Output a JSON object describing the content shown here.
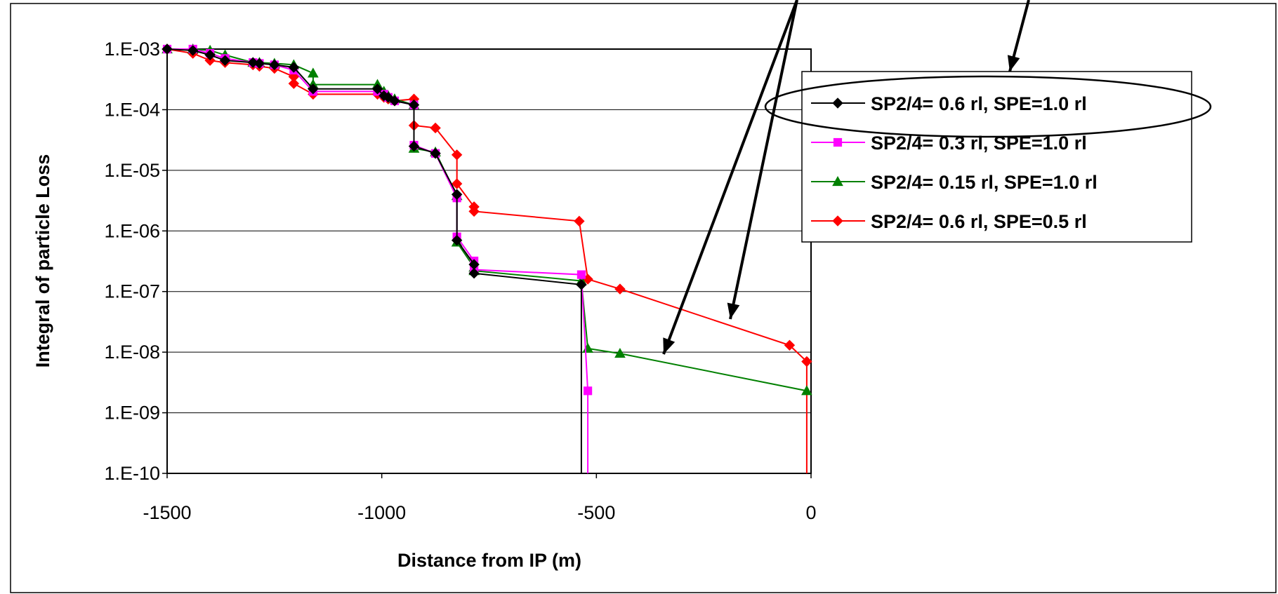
{
  "chart_data": {
    "type": "line",
    "title": "",
    "xlabel": "Distance from IP (m)",
    "ylabel": "Integral of particle Loss",
    "xlim": [
      -1500,
      0
    ],
    "ylim": [
      1e-10,
      0.001
    ],
    "y_scale": "log",
    "x_ticks": [
      {
        "value": -1500,
        "label": "-1500"
      },
      {
        "value": -1000,
        "label": "-1000"
      },
      {
        "value": -500,
        "label": "-500"
      },
      {
        "value": 0,
        "label": "0"
      }
    ],
    "y_ticks": [
      {
        "value": 0.001,
        "label": "1.E-03"
      },
      {
        "value": 0.0001,
        "label": "1.E-04"
      },
      {
        "value": 1e-05,
        "label": "1.E-05"
      },
      {
        "value": 1e-06,
        "label": "1.E-06"
      },
      {
        "value": 1e-07,
        "label": "1.E-07"
      },
      {
        "value": 1e-08,
        "label": "1.E-08"
      },
      {
        "value": 1e-09,
        "label": "1.E-09"
      },
      {
        "value": 1e-10,
        "label": "1.E-10"
      }
    ],
    "grid": "horizontal",
    "legend_position": "right",
    "series": [
      {
        "name": "SP2/4= 0.6 rl, SPE=1.0 rl",
        "color": "#000000",
        "marker": "diamond",
        "points": [
          [
            -1500,
            0.001
          ],
          [
            -1440,
            0.00095
          ],
          [
            -1400,
            0.0008
          ],
          [
            -1365,
            0.00065
          ],
          [
            -1300,
            0.0006
          ],
          [
            -1285,
            0.00058
          ],
          [
            -1250,
            0.00055
          ],
          [
            -1205,
            0.0005
          ],
          [
            -1160,
            0.00022
          ],
          [
            -1010,
            0.00022
          ],
          [
            -995,
            0.00017
          ],
          [
            -985,
            0.00016
          ],
          [
            -970,
            0.00014
          ],
          [
            -925,
            0.00012
          ],
          [
            -925,
            2.5e-05
          ],
          [
            -875,
            1.9e-05
          ],
          [
            -825,
            4e-06
          ],
          [
            -825,
            7e-07
          ],
          [
            -785,
            2.8e-07
          ],
          [
            -785,
            2e-07
          ],
          [
            -535,
            1.3e-07
          ],
          [
            -535,
            1e-10
          ]
        ]
      },
      {
        "name": "SP2/4= 0.3 rl, SPE=1.0 rl",
        "color": "#ff00ff",
        "marker": "square",
        "points": [
          [
            -1500,
            0.001
          ],
          [
            -1440,
            0.001
          ],
          [
            -1400,
            0.00085
          ],
          [
            -1365,
            0.0007
          ],
          [
            -1300,
            0.0006
          ],
          [
            -1285,
            0.00058
          ],
          [
            -1250,
            0.00055
          ],
          [
            -1205,
            0.00045
          ],
          [
            -1160,
            0.0002
          ],
          [
            -1010,
            0.0002
          ],
          [
            -995,
            0.00018
          ],
          [
            -985,
            0.00016
          ],
          [
            -970,
            0.00014
          ],
          [
            -925,
            0.00012
          ],
          [
            -925,
            2.6e-05
          ],
          [
            -875,
            1.9e-05
          ],
          [
            -825,
            3.5e-06
          ],
          [
            -825,
            8e-07
          ],
          [
            -785,
            3.2e-07
          ],
          [
            -785,
            2.3e-07
          ],
          [
            -535,
            1.9e-07
          ],
          [
            -520,
            2.3e-09
          ],
          [
            -520,
            1e-10
          ]
        ]
      },
      {
        "name": "SP2/4= 0.15 rl, SPE=1.0 rl",
        "color": "#008000",
        "marker": "triangle",
        "points": [
          [
            -1500,
            0.001
          ],
          [
            -1440,
            0.001
          ],
          [
            -1400,
            0.00095
          ],
          [
            -1365,
            0.0008
          ],
          [
            -1300,
            0.0006
          ],
          [
            -1285,
            0.0006
          ],
          [
            -1250,
            0.00058
          ],
          [
            -1205,
            0.00055
          ],
          [
            -1160,
            0.0004
          ],
          [
            -1160,
            0.00026
          ],
          [
            -1010,
            0.00026
          ],
          [
            -995,
            0.0002
          ],
          [
            -985,
            0.00017
          ],
          [
            -970,
            0.00015
          ],
          [
            -925,
            0.00012
          ],
          [
            -925,
            2.3e-05
          ],
          [
            -875,
            2e-05
          ],
          [
            -825,
            3.8e-06
          ],
          [
            -825,
            6.5e-07
          ],
          [
            -785,
            2.5e-07
          ],
          [
            -785,
            2.2e-07
          ],
          [
            -535,
            1.5e-07
          ],
          [
            -520,
            1.15e-08
          ],
          [
            -445,
            9.5e-09
          ],
          [
            -10,
            2.3e-09
          ]
        ]
      },
      {
        "name": "SP2/4= 0.6 rl, SPE=0.5 rl",
        "color": "#ff0000",
        "marker": "diamond",
        "points": [
          [
            -1500,
            0.001
          ],
          [
            -1440,
            0.00085
          ],
          [
            -1400,
            0.00065
          ],
          [
            -1365,
            0.0006
          ],
          [
            -1300,
            0.00055
          ],
          [
            -1285,
            0.00052
          ],
          [
            -1250,
            0.00048
          ],
          [
            -1205,
            0.00035
          ],
          [
            -1205,
            0.00027
          ],
          [
            -1160,
            0.00018
          ],
          [
            -1010,
            0.00018
          ],
          [
            -995,
            0.00016
          ],
          [
            -985,
            0.00015
          ],
          [
            -970,
            0.00014
          ],
          [
            -925,
            0.00015
          ],
          [
            -925,
            5.5e-05
          ],
          [
            -875,
            5e-05
          ],
          [
            -825,
            1.8e-05
          ],
          [
            -825,
            6e-06
          ],
          [
            -785,
            2.5e-06
          ],
          [
            -785,
            2.1e-06
          ],
          [
            -540,
            1.45e-06
          ],
          [
            -520,
            1.6e-07
          ],
          [
            -445,
            1.1e-07
          ],
          [
            -50,
            1.3e-08
          ],
          [
            -10,
            7e-09
          ],
          [
            -10,
            1e-10
          ]
        ]
      }
    ]
  }
}
